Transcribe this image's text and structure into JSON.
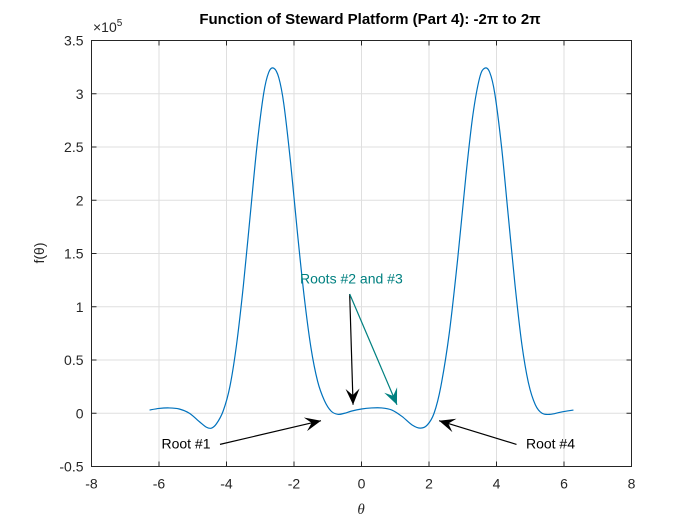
{
  "chart_data": {
    "type": "line",
    "title": "Function of Steward Platform (Part 4):  -2π to 2π",
    "xlabel": "θ",
    "ylabel": "f(θ)",
    "y_exponent_label": "×10",
    "y_exponent": "5",
    "xlim": [
      -8,
      8
    ],
    "ylim": [
      -0.5,
      3.5
    ],
    "y_scale": 100000,
    "grid": true,
    "xticks": [
      "-8",
      "-6",
      "-4",
      "-2",
      "0",
      "2",
      "4",
      "6",
      "8"
    ],
    "yticks": [
      "-0.5",
      "0",
      "0.5",
      "1",
      "1.5",
      "2",
      "2.5",
      "3",
      "3.5"
    ],
    "series": [
      {
        "name": "f(theta)",
        "color": "#0072BD",
        "x": [
          -6.28,
          -6.0,
          -5.7,
          -5.4,
          -5.1,
          -4.8,
          -4.6,
          -4.45,
          -4.3,
          -4.1,
          -3.9,
          -3.7,
          -3.5,
          -3.3,
          -3.1,
          -2.9,
          -2.75,
          -2.6,
          -2.45,
          -2.3,
          -2.1,
          -1.9,
          -1.7,
          -1.5,
          -1.3,
          -1.1,
          -0.9,
          -0.7,
          -0.5,
          -0.3,
          0.0,
          0.3,
          0.6,
          0.9,
          1.2,
          1.5,
          1.75,
          1.95,
          2.15,
          2.35,
          2.6,
          2.85,
          3.1,
          3.3,
          3.5,
          3.65,
          3.8,
          3.95,
          4.15,
          4.35,
          4.55,
          4.75,
          4.95,
          5.15,
          5.35,
          5.6,
          5.9,
          6.28
        ],
        "values": [
          0.03,
          0.045,
          0.05,
          0.04,
          0.0,
          -0.08,
          -0.13,
          -0.14,
          -0.1,
          0.02,
          0.25,
          0.65,
          1.2,
          1.85,
          2.5,
          3.0,
          3.2,
          3.24,
          3.15,
          2.9,
          2.35,
          1.7,
          1.1,
          0.62,
          0.3,
          0.12,
          0.02,
          -0.01,
          0.0,
          0.02,
          0.04,
          0.05,
          0.05,
          0.03,
          -0.03,
          -0.11,
          -0.14,
          -0.11,
          0.0,
          0.25,
          0.75,
          1.45,
          2.25,
          2.8,
          3.15,
          3.24,
          3.2,
          3.0,
          2.5,
          1.85,
          1.2,
          0.65,
          0.28,
          0.08,
          0.0,
          -0.01,
          0.01,
          0.03
        ]
      }
    ],
    "annotations": [
      {
        "text": "Root #1",
        "color": "#000000",
        "text_xy": [
          -5.2,
          -0.33
        ],
        "arrow_to": [
          [
            -1.2,
            -0.07
          ]
        ]
      },
      {
        "text": "Roots #2 and #3",
        "color": "#008080",
        "text_xy": [
          -0.3,
          1.22
        ],
        "arrow_to": [
          [
            -0.25,
            0.08
          ],
          [
            1.05,
            0.08
          ]
        ],
        "arrow_colors": [
          "#000000",
          "#008080"
        ]
      },
      {
        "text": "Root #4",
        "color": "#000000",
        "text_xy": [
          5.6,
          -0.33
        ],
        "arrow_to": [
          [
            2.3,
            -0.07
          ]
        ]
      }
    ]
  }
}
